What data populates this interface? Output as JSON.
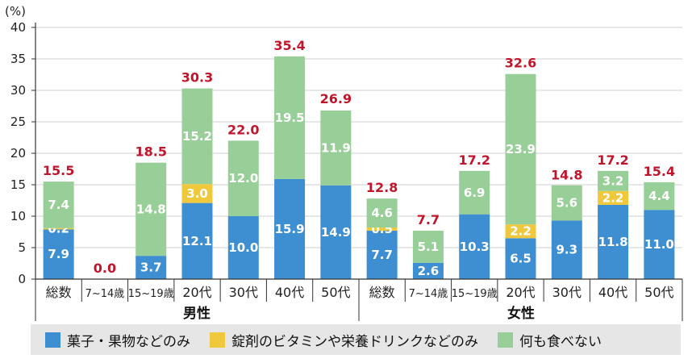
{
  "chart_data": {
    "type": "bar",
    "stacked": true,
    "y_unit": "(%)",
    "ylim": [
      0,
      40
    ],
    "yticks": [
      0,
      5,
      10,
      15,
      20,
      25,
      30,
      35,
      40
    ],
    "grid": true,
    "groups": [
      {
        "label": "男性",
        "categories": [
          "総数",
          "7~14歳",
          "15~19歳",
          "20代",
          "30代",
          "40代",
          "50代"
        ]
      },
      {
        "label": "女性",
        "categories": [
          "総数",
          "7~14歳",
          "15~19歳",
          "20代",
          "30代",
          "40代",
          "50代"
        ]
      }
    ],
    "categories": [
      "総数",
      "7~14歳",
      "15~19歳",
      "20代",
      "30代",
      "40代",
      "50代",
      "総数",
      "7~14歳",
      "15~19歳",
      "20代",
      "30代",
      "40代",
      "50代"
    ],
    "series": [
      {
        "name": "菓子・果物などのみ",
        "color": "#3d8fd1",
        "values": [
          7.9,
          null,
          3.7,
          12.1,
          10.0,
          15.9,
          14.9,
          7.7,
          2.6,
          10.3,
          6.5,
          9.3,
          11.8,
          11.0
        ]
      },
      {
        "name": "錠剤のビタミンや栄養ドリンクなどのみ",
        "color": "#f0c83c",
        "values": [
          0.2,
          null,
          null,
          3.0,
          null,
          null,
          null,
          0.5,
          null,
          null,
          2.2,
          null,
          2.2,
          null
        ]
      },
      {
        "name": "何も食べない",
        "color": "#98cf98",
        "values": [
          7.4,
          null,
          14.8,
          15.2,
          12.0,
          19.5,
          11.9,
          4.6,
          5.1,
          6.9,
          23.9,
          5.6,
          3.2,
          4.4
        ]
      }
    ],
    "totals": [
      "15.5",
      "0.0",
      "18.5",
      "30.3",
      "22.0",
      "35.4",
      "26.9",
      "12.8",
      "7.7",
      "17.2",
      "32.6",
      "14.8",
      "17.2",
      "15.4"
    ],
    "total_color": "#c0162c",
    "legend_position": "bottom"
  }
}
